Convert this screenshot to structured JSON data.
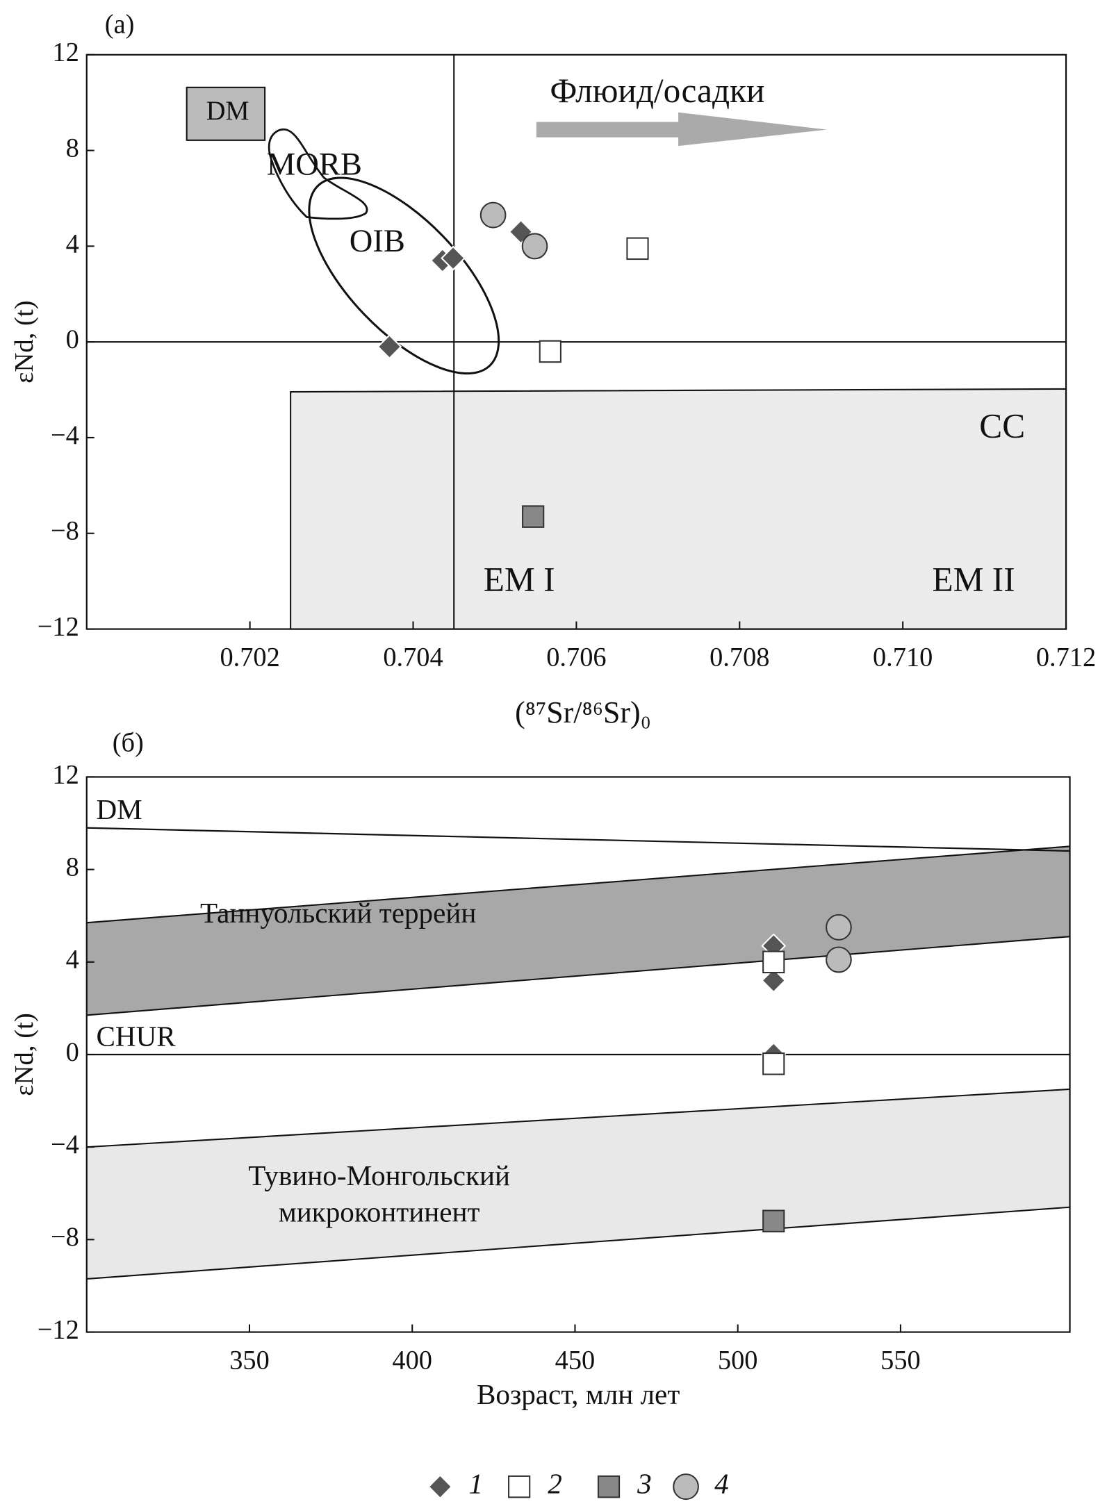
{
  "chart_data": [
    {
      "type": "scatter",
      "panel_label": "(a)",
      "x_label": "(⁸⁷Sr/⁸⁶Sr)₀",
      "y_label": "εNd, (t)",
      "xlim": [
        0.7,
        0.712
      ],
      "xticks": [
        0.702,
        0.704,
        0.706,
        0.708,
        {
          "value": 0.71,
          "label": "0.710"
        },
        0.712
      ],
      "ylim": [
        -12,
        12
      ],
      "yticks": [
        {
          "value": -12,
          "label": "−12"
        },
        {
          "value": -8,
          "label": "−8"
        },
        {
          "value": -4,
          "label": "−4"
        },
        0,
        4,
        8,
        12
      ],
      "ref_lines": {
        "x": [
          0.7045
        ],
        "y": [
          0
        ]
      },
      "annotations": [
        "DM",
        "MORB",
        "OIB",
        "Флюид/осадки",
        "CC",
        "EM I",
        "EM II"
      ],
      "series": [
        {
          "name": "1",
          "marker": "diamond",
          "color": "#555555",
          "x": [
            0.70436,
            0.70449,
            0.70532,
            0.70371
          ],
          "values": [
            3.4,
            3.5,
            4.6,
            -0.2
          ]
        },
        {
          "name": "2",
          "marker": "open-square",
          "color": "#ffffff",
          "x": [
            0.70675,
            0.70568
          ],
          "values": [
            3.9,
            -0.4
          ]
        },
        {
          "name": "3",
          "marker": "square",
          "color": "#888888",
          "x": [
            0.70547
          ],
          "values": [
            -7.3
          ]
        },
        {
          "name": "4",
          "marker": "circle",
          "color": "#bbbbbb",
          "x": [
            0.70498,
            0.70549
          ],
          "values": [
            5.3,
            4
          ]
        }
      ]
    },
    {
      "type": "scatter",
      "panel_label": "(б)",
      "x_label": "Возраст, млн лет",
      "y_label": "εNd, (t)",
      "xlim": [
        300,
        602
      ],
      "xticks": [
        350,
        400,
        450,
        500,
        550
      ],
      "ylim": [
        -12,
        12
      ],
      "yticks": [
        {
          "value": -12,
          "label": "−12"
        },
        {
          "value": -8,
          "label": "−8"
        },
        {
          "value": -4,
          "label": "−4"
        },
        0,
        4,
        8,
        12
      ],
      "lines": [
        {
          "name": "DM",
          "x": [
            300,
            602
          ],
          "values": [
            9.8,
            8.8
          ]
        },
        {
          "name": "CHUR",
          "x": [
            300,
            602
          ],
          "values": [
            0,
            0
          ]
        }
      ],
      "bands": [
        {
          "label_lines": [
            "Таннуольский террейн"
          ],
          "color": "#a8a8a8",
          "x": [
            300,
            602
          ],
          "upper": [
            5.7,
            9
          ],
          "lower": [
            1.7,
            5.1
          ]
        },
        {
          "label_lines": [
            "Тувино-Монгольский",
            "микроконтинент"
          ],
          "color": "#e8e8e8",
          "x": [
            300,
            602
          ],
          "upper": [
            -4,
            -1.5
          ],
          "lower": [
            -9.7,
            -6.6
          ]
        }
      ],
      "series": [
        {
          "name": "1",
          "marker": "diamond",
          "color": "#555555",
          "x": [
            511,
            511,
            511
          ],
          "values": [
            4.7,
            3.2,
            0
          ]
        },
        {
          "name": "2",
          "marker": "open-square",
          "color": "#ffffff",
          "x": [
            511,
            511
          ],
          "values": [
            4,
            -0.4
          ]
        },
        {
          "name": "3",
          "marker": "square",
          "color": "#888888",
          "x": [
            511
          ],
          "values": [
            -7.2
          ]
        },
        {
          "name": "4",
          "marker": "circle",
          "color": "#bbbbbb",
          "x": [
            531,
            531
          ],
          "values": [
            5.5,
            4.1
          ]
        }
      ]
    }
  ]
}
